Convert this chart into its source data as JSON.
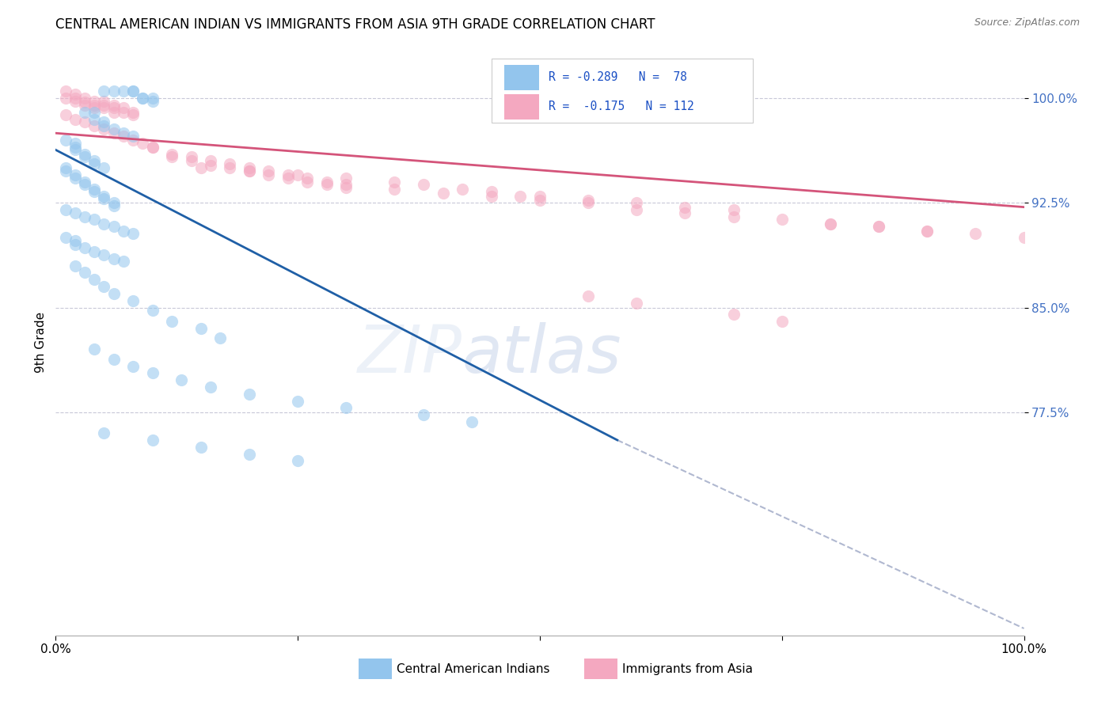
{
  "title": "CENTRAL AMERICAN INDIAN VS IMMIGRANTS FROM ASIA 9TH GRADE CORRELATION CHART",
  "source": "Source: ZipAtlas.com",
  "ylabel": "9th Grade",
  "xlim": [
    0.0,
    1.0
  ],
  "ylim": [
    0.615,
    1.035
  ],
  "blue_color": "#93C5ED",
  "pink_color": "#F4A8C0",
  "trendline_blue_color": "#1F5FA6",
  "trendline_pink_color": "#D4547A",
  "trendline_dashed_color": "#B0B8D0",
  "blue_scatter_x": [
    0.05,
    0.06,
    0.07,
    0.08,
    0.08,
    0.09,
    0.09,
    0.1,
    0.1,
    0.03,
    0.04,
    0.04,
    0.05,
    0.05,
    0.06,
    0.07,
    0.08,
    0.01,
    0.02,
    0.02,
    0.02,
    0.03,
    0.03,
    0.04,
    0.04,
    0.05,
    0.01,
    0.01,
    0.02,
    0.02,
    0.03,
    0.03,
    0.04,
    0.04,
    0.05,
    0.05,
    0.06,
    0.06,
    0.01,
    0.02,
    0.03,
    0.04,
    0.05,
    0.06,
    0.07,
    0.08,
    0.01,
    0.02,
    0.02,
    0.03,
    0.04,
    0.05,
    0.06,
    0.07,
    0.02,
    0.03,
    0.04,
    0.05,
    0.06,
    0.08,
    0.1,
    0.12,
    0.15,
    0.17,
    0.04,
    0.06,
    0.08,
    0.1,
    0.13,
    0.16,
    0.2,
    0.25,
    0.3,
    0.38,
    0.43,
    0.05,
    0.1,
    0.15,
    0.2,
    0.25
  ],
  "blue_scatter_y": [
    1.005,
    1.005,
    1.005,
    1.005,
    1.005,
    1.0,
    1.0,
    1.0,
    0.998,
    0.99,
    0.99,
    0.985,
    0.983,
    0.98,
    0.978,
    0.975,
    0.973,
    0.97,
    0.968,
    0.965,
    0.963,
    0.96,
    0.958,
    0.955,
    0.953,
    0.95,
    0.95,
    0.948,
    0.945,
    0.943,
    0.94,
    0.938,
    0.935,
    0.933,
    0.93,
    0.928,
    0.925,
    0.923,
    0.92,
    0.918,
    0.915,
    0.913,
    0.91,
    0.908,
    0.905,
    0.903,
    0.9,
    0.898,
    0.895,
    0.893,
    0.89,
    0.888,
    0.885,
    0.883,
    0.88,
    0.875,
    0.87,
    0.865,
    0.86,
    0.855,
    0.848,
    0.84,
    0.835,
    0.828,
    0.82,
    0.813,
    0.808,
    0.803,
    0.798,
    0.793,
    0.788,
    0.783,
    0.778,
    0.773,
    0.768,
    0.76,
    0.755,
    0.75,
    0.745,
    0.74
  ],
  "pink_scatter_x": [
    0.01,
    0.01,
    0.02,
    0.02,
    0.02,
    0.03,
    0.03,
    0.03,
    0.04,
    0.04,
    0.04,
    0.05,
    0.05,
    0.05,
    0.06,
    0.06,
    0.06,
    0.07,
    0.07,
    0.08,
    0.08,
    0.01,
    0.02,
    0.03,
    0.04,
    0.05,
    0.06,
    0.07,
    0.08,
    0.09,
    0.1,
    0.1,
    0.12,
    0.14,
    0.16,
    0.18,
    0.2,
    0.22,
    0.24,
    0.26,
    0.28,
    0.12,
    0.14,
    0.16,
    0.18,
    0.2,
    0.22,
    0.24,
    0.26,
    0.28,
    0.3,
    0.15,
    0.2,
    0.25,
    0.3,
    0.35,
    0.38,
    0.42,
    0.45,
    0.48,
    0.3,
    0.35,
    0.4,
    0.45,
    0.5,
    0.55,
    0.5,
    0.55,
    0.6,
    0.65,
    0.7,
    0.6,
    0.65,
    0.7,
    0.75,
    0.8,
    0.85,
    0.9,
    0.8,
    0.85,
    0.9,
    0.95,
    1.0,
    0.55,
    0.6,
    0.7,
    0.75
  ],
  "pink_scatter_y": [
    1.005,
    1.0,
    1.003,
    1.0,
    0.998,
    1.0,
    0.997,
    0.995,
    0.998,
    0.995,
    0.993,
    0.998,
    0.995,
    0.993,
    0.995,
    0.993,
    0.99,
    0.993,
    0.99,
    0.99,
    0.988,
    0.988,
    0.985,
    0.983,
    0.98,
    0.978,
    0.975,
    0.973,
    0.97,
    0.968,
    0.965,
    0.965,
    0.96,
    0.958,
    0.955,
    0.953,
    0.95,
    0.948,
    0.945,
    0.943,
    0.94,
    0.958,
    0.955,
    0.952,
    0.95,
    0.948,
    0.945,
    0.943,
    0.94,
    0.938,
    0.936,
    0.95,
    0.948,
    0.945,
    0.943,
    0.94,
    0.938,
    0.935,
    0.933,
    0.93,
    0.938,
    0.935,
    0.932,
    0.93,
    0.927,
    0.925,
    0.93,
    0.927,
    0.925,
    0.922,
    0.92,
    0.92,
    0.918,
    0.915,
    0.913,
    0.91,
    0.908,
    0.905,
    0.91,
    0.908,
    0.905,
    0.903,
    0.9,
    0.858,
    0.853,
    0.845,
    0.84
  ],
  "blue_trend_x": [
    0.0,
    0.58
  ],
  "blue_trend_y": [
    0.963,
    0.755
  ],
  "pink_trend_x": [
    0.0,
    1.0
  ],
  "pink_trend_y": [
    0.975,
    0.922
  ],
  "dashed_trend_x": [
    0.58,
    1.0
  ],
  "dashed_trend_y": [
    0.755,
    0.62
  ]
}
